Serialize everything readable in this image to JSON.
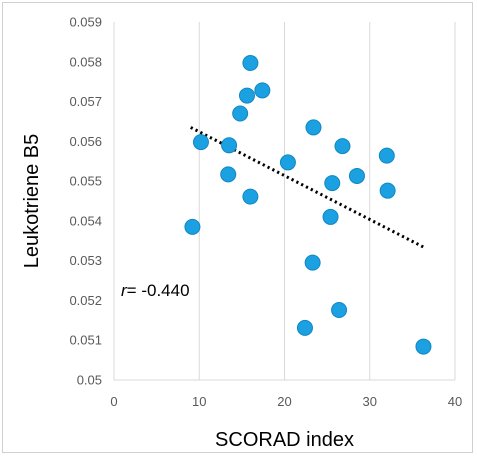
{
  "chart_data": {
    "type": "scatter",
    "xlabel": "SCORAD index",
    "ylabel": "Leukotriene B5",
    "xlim": [
      0,
      40
    ],
    "ylim": [
      0.05,
      0.059
    ],
    "x_ticks": [
      0,
      10,
      20,
      30,
      40
    ],
    "y_ticks": [
      0.05,
      0.051,
      0.052,
      0.053,
      0.054,
      0.055,
      0.056,
      0.057,
      0.058,
      0.059
    ],
    "grid": "vertical",
    "annotation": {
      "prefix": "r",
      "value": "= -0.440"
    },
    "series": [
      {
        "points": [
          {
            "x": 9.2,
            "y": 0.05385
          },
          {
            "x": 10.2,
            "y": 0.05598
          },
          {
            "x": 13.4,
            "y": 0.05517
          },
          {
            "x": 13.5,
            "y": 0.0559
          },
          {
            "x": 14.8,
            "y": 0.0567
          },
          {
            "x": 15.6,
            "y": 0.05715
          },
          {
            "x": 16.0,
            "y": 0.05797
          },
          {
            "x": 16.0,
            "y": 0.05461
          },
          {
            "x": 17.4,
            "y": 0.05728
          },
          {
            "x": 20.4,
            "y": 0.05547
          },
          {
            "x": 22.4,
            "y": 0.05131
          },
          {
            "x": 23.3,
            "y": 0.05295
          },
          {
            "x": 23.4,
            "y": 0.05635
          },
          {
            "x": 25.4,
            "y": 0.0541
          },
          {
            "x": 25.6,
            "y": 0.05495
          },
          {
            "x": 26.4,
            "y": 0.05176
          },
          {
            "x": 26.8,
            "y": 0.05588
          },
          {
            "x": 28.5,
            "y": 0.05513
          },
          {
            "x": 32.0,
            "y": 0.05564
          },
          {
            "x": 32.1,
            "y": 0.05476
          },
          {
            "x": 36.3,
            "y": 0.05084
          }
        ],
        "color": "#1ba1e2",
        "stroke": "#1286c2"
      }
    ],
    "trendline": {
      "x": [
        9.0,
        36.5
      ],
      "y": [
        0.05635,
        0.05332
      ],
      "style": "dotted",
      "color": "#000000"
    }
  }
}
